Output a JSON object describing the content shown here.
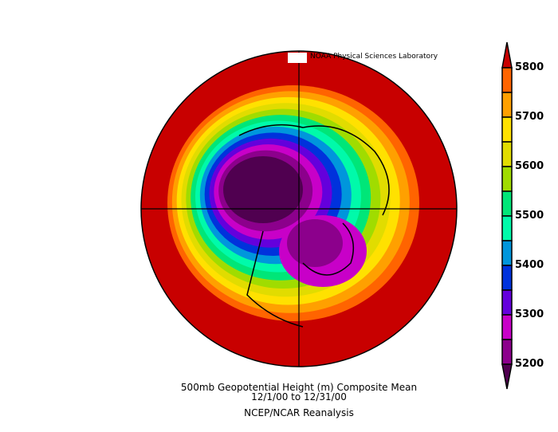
{
  "credit": "NOAA Physical Sciences Laboratory",
  "caption": {
    "line1": "500mb Geopotential Height (m) Composite Mean",
    "line2": "12/1/00  to 12/31/00",
    "line3": "NCEP/NCAR Reanalysis"
  },
  "colorbar": {
    "tick_labels": [
      "5800",
      "5700",
      "5600",
      "5500",
      "5400",
      "5300",
      "5200"
    ],
    "levels": [
      5200,
      5250,
      5300,
      5350,
      5400,
      5450,
      5500,
      5550,
      5600,
      5650,
      5700,
      5750,
      5800
    ],
    "colors": [
      "#500050",
      "#8c008c",
      "#c800c8",
      "#6400dc",
      "#0032dc",
      "#0096dc",
      "#00faaa",
      "#00e678",
      "#a0dc00",
      "#e1dc00",
      "#ffe100",
      "#ffa000",
      "#ff6400",
      "#c80000"
    ]
  },
  "map": {
    "projection": "north polar stereographic",
    "variable": "500mb geopotential height",
    "coastlines": true
  }
}
